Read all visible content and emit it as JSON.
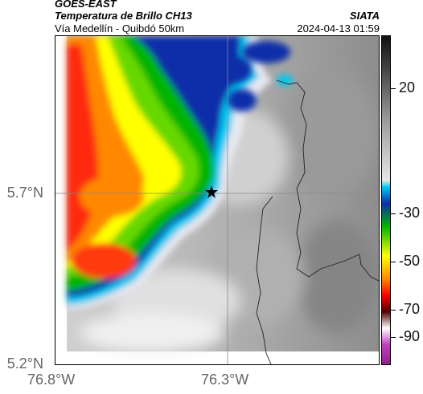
{
  "header": {
    "agency": "GOES-EAST",
    "product": "Temperatura de Brillo CH13",
    "region": "Vía Medellín - Quibdó 50km",
    "source": "SIATA",
    "timestamp": "2024-04-13 01:59"
  },
  "axes": {
    "lat_labels": [
      "5.7°N",
      "5.2°N"
    ],
    "lon_labels": [
      "76.8°W",
      "76.3°W"
    ]
  },
  "colorbar": {
    "tick_labels": [
      "20",
      "-30",
      "-50",
      "-70",
      "-90"
    ],
    "unit": "",
    "colors": {
      "black": "#111111",
      "gray_light": "#e6e6e6",
      "cyan": "#00c8f0",
      "blue": "#0a2fa8",
      "green": "#00b400",
      "yellow": "#ffff00",
      "orange": "#ff8800",
      "red": "#ff0000",
      "dark_red": "#500000",
      "magenta": "#c040c0"
    }
  },
  "map": {
    "marker": "star-icon",
    "background_colors": {
      "warm_gray": "#8a8a8a",
      "cold_white": "#f0f0f0",
      "deep_convection_red": "#ff2a10"
    }
  }
}
